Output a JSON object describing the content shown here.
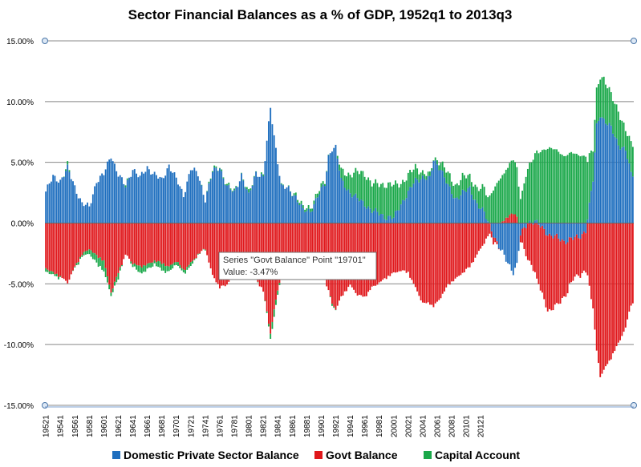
{
  "chart_data": {
    "type": "bar",
    "stacked": true,
    "title": "Sector Financial Balances as a % of GDP, 1952q1 to 2013q3",
    "xlabel": "",
    "ylabel": "",
    "ylim": [
      -15,
      15
    ],
    "yticks": [
      15,
      10,
      5,
      0,
      -5,
      -10,
      -15
    ],
    "ytick_labels": [
      "15.00%",
      "10.00%",
      "5.00%",
      "0.00%",
      "-5.00%",
      "-10.00%",
      "-15.00%"
    ],
    "x_tick_labels": [
      "19521",
      "19541",
      "19561",
      "19581",
      "19601",
      "19621",
      "19641",
      "19661",
      "19681",
      "19701",
      "19721",
      "19741",
      "19761",
      "19781",
      "19801",
      "19821",
      "19841",
      "19861",
      "19881",
      "19901",
      "19921",
      "19941",
      "19961",
      "19981",
      "20001",
      "20021",
      "20041",
      "20061",
      "20081",
      "20101",
      "20121"
    ],
    "grid": true,
    "legend_position": "bottom",
    "series": [
      {
        "name": "Domestic Private Sector Balance",
        "color": "#1f6fbf"
      },
      {
        "name": "Govt Balance",
        "color": "#e0171b"
      },
      {
        "name": "Capital Account",
        "color": "#1aa84a"
      }
    ],
    "anchors": {
      "private": [
        [
          0,
          2.6
        ],
        [
          4,
          3.8
        ],
        [
          8,
          3.5
        ],
        [
          12,
          4.5
        ],
        [
          16,
          3
        ],
        [
          20,
          1.6
        ],
        [
          24,
          1.3
        ],
        [
          28,
          3.5
        ],
        [
          32,
          4
        ],
        [
          36,
          5.6
        ],
        [
          40,
          4
        ],
        [
          44,
          3
        ],
        [
          48,
          4.5
        ],
        [
          52,
          3.7
        ],
        [
          56,
          4.6
        ],
        [
          60,
          4
        ],
        [
          64,
          3.5
        ],
        [
          68,
          4.8
        ],
        [
          72,
          3.6
        ],
        [
          76,
          2.3
        ],
        [
          80,
          4.5
        ],
        [
          84,
          4
        ],
        [
          88,
          2
        ],
        [
          92,
          4.2
        ],
        [
          96,
          4.6
        ],
        [
          100,
          3
        ],
        [
          104,
          2.5
        ],
        [
          108,
          4
        ],
        [
          112,
          2.2
        ],
        [
          116,
          4.2
        ],
        [
          120,
          3.8
        ],
        [
          124,
          9.5
        ],
        [
          126,
          7.2
        ],
        [
          130,
          3
        ],
        [
          134,
          2.8
        ],
        [
          138,
          2.2
        ],
        [
          142,
          1
        ],
        [
          146,
          1
        ],
        [
          150,
          2.2
        ],
        [
          154,
          3.2
        ],
        [
          156,
          5.5
        ],
        [
          158,
          6.2
        ],
        [
          160,
          6.2
        ],
        [
          163,
          3.5
        ],
        [
          168,
          2.5
        ],
        [
          172,
          2
        ],
        [
          176,
          1.6
        ],
        [
          180,
          1
        ],
        [
          184,
          0.8
        ],
        [
          188,
          0.5
        ],
        [
          192,
          0.4
        ],
        [
          196,
          1.6
        ],
        [
          200,
          2.5
        ],
        [
          204,
          3.5
        ],
        [
          208,
          3.8
        ],
        [
          212,
          3.6
        ],
        [
          214,
          5.2
        ],
        [
          218,
          4.5
        ],
        [
          222,
          3
        ],
        [
          226,
          2
        ],
        [
          230,
          2.5
        ],
        [
          234,
          2.8
        ],
        [
          238,
          1.6
        ],
        [
          242,
          0.8
        ],
        [
          244,
          0.1
        ],
        [
          246,
          -0.5
        ],
        [
          250,
          -2
        ],
        [
          254,
          -3
        ],
        [
          258,
          -4
        ],
        [
          260,
          -3.5
        ],
        [
          262,
          -1
        ],
        [
          266,
          0.1
        ],
        [
          270,
          0.1
        ],
        [
          274,
          -0.4
        ],
        [
          278,
          -1
        ],
        [
          282,
          -1.2
        ],
        [
          286,
          -1.5
        ],
        [
          290,
          -1.3
        ],
        [
          294,
          -1.2
        ],
        [
          298,
          -0.6
        ],
        [
          302,
          3.5
        ],
        [
          304,
          8
        ],
        [
          306,
          9
        ],
        [
          308,
          8.5
        ],
        [
          312,
          7.8
        ],
        [
          316,
          6.5
        ],
        [
          320,
          6
        ],
        [
          323,
          4
        ]
      ],
      "govt": [
        [
          0,
          -3.6
        ],
        [
          4,
          -4
        ],
        [
          8,
          -4.3
        ],
        [
          12,
          -4.8
        ],
        [
          16,
          -3.5
        ],
        [
          20,
          -2.5
        ],
        [
          24,
          -2
        ],
        [
          28,
          -2.6
        ],
        [
          32,
          -3
        ],
        [
          36,
          -5.6
        ],
        [
          40,
          -4
        ],
        [
          44,
          -2.5
        ],
        [
          48,
          -3.2
        ],
        [
          52,
          -3.5
        ],
        [
          56,
          -3.3
        ],
        [
          60,
          -3
        ],
        [
          64,
          -3.2
        ],
        [
          68,
          -3.5
        ],
        [
          72,
          -3
        ],
        [
          76,
          -3.8
        ],
        [
          80,
          -3.2
        ],
        [
          84,
          -2.5
        ],
        [
          88,
          -2
        ],
        [
          92,
          -4.2
        ],
        [
          96,
          -5.2
        ],
        [
          100,
          -5
        ],
        [
          104,
          -3.6
        ],
        [
          108,
          -4.5
        ],
        [
          112,
          -3.5
        ],
        [
          116,
          -4.5
        ],
        [
          120,
          -5.5
        ],
        [
          124,
          -9
        ],
        [
          126,
          -7
        ],
        [
          130,
          -4
        ],
        [
          134,
          -3.8
        ],
        [
          138,
          -3.2
        ],
        [
          142,
          -2.5
        ],
        [
          146,
          -2.5
        ],
        [
          150,
          -3
        ],
        [
          154,
          -4.6
        ],
        [
          156,
          -5.5
        ],
        [
          158,
          -6.5
        ],
        [
          160,
          -7
        ],
        [
          163,
          -6
        ],
        [
          168,
          -5
        ],
        [
          172,
          -5.8
        ],
        [
          176,
          -6
        ],
        [
          180,
          -5.2
        ],
        [
          184,
          -4.8
        ],
        [
          188,
          -4.4
        ],
        [
          192,
          -4
        ],
        [
          196,
          -3.8
        ],
        [
          200,
          -4
        ],
        [
          204,
          -5.2
        ],
        [
          208,
          -6.5
        ],
        [
          212,
          -6.5
        ],
        [
          214,
          -6.8
        ],
        [
          218,
          -6
        ],
        [
          222,
          -5
        ],
        [
          226,
          -4.5
        ],
        [
          230,
          -4
        ],
        [
          234,
          -3.5
        ],
        [
          238,
          -2.5
        ],
        [
          242,
          -1.5
        ],
        [
          244,
          -1
        ],
        [
          246,
          -0.5
        ],
        [
          250,
          0
        ],
        [
          254,
          0.5
        ],
        [
          258,
          0.9
        ],
        [
          260,
          0.7
        ],
        [
          262,
          -0.5
        ],
        [
          266,
          -2.8
        ],
        [
          270,
          -4
        ],
        [
          274,
          -5.5
        ],
        [
          278,
          -6.2
        ],
        [
          282,
          -5.5
        ],
        [
          286,
          -4.5
        ],
        [
          290,
          -3.5
        ],
        [
          294,
          -3
        ],
        [
          298,
          -3.2
        ],
        [
          302,
          -7
        ],
        [
          304,
          -10.4
        ],
        [
          306,
          -12.5
        ],
        [
          308,
          -12
        ],
        [
          312,
          -11
        ],
        [
          316,
          -9.8
        ],
        [
          320,
          -8.5
        ],
        [
          323,
          -6.6
        ]
      ],
      "capital": [
        [
          0,
          -0.3
        ],
        [
          4,
          -0.2
        ],
        [
          8,
          -0.1
        ],
        [
          12,
          0.2
        ],
        [
          16,
          -0.1
        ],
        [
          20,
          -0.2
        ],
        [
          24,
          -0.4
        ],
        [
          28,
          -0.6
        ],
        [
          32,
          -0.9
        ],
        [
          36,
          -0.2
        ],
        [
          40,
          -0.5
        ],
        [
          44,
          0.2
        ],
        [
          48,
          -0.2
        ],
        [
          52,
          -0.6
        ],
        [
          56,
          -0.4
        ],
        [
          60,
          -0.3
        ],
        [
          64,
          -0.6
        ],
        [
          68,
          -0.4
        ],
        [
          72,
          -0.3
        ],
        [
          76,
          -0.2
        ],
        [
          80,
          -0.3
        ],
        [
          84,
          0
        ],
        [
          88,
          0
        ],
        [
          92,
          0.1
        ],
        [
          96,
          0.1
        ],
        [
          100,
          0.1
        ],
        [
          104,
          0.1
        ],
        [
          108,
          0
        ],
        [
          112,
          0.2
        ],
        [
          116,
          0
        ],
        [
          120,
          0.1
        ],
        [
          124,
          -0.4
        ],
        [
          126,
          -0.6
        ],
        [
          130,
          0
        ],
        [
          134,
          0
        ],
        [
          138,
          0.2
        ],
        [
          142,
          0.2
        ],
        [
          146,
          0.3
        ],
        [
          150,
          0.3
        ],
        [
          154,
          0.2
        ],
        [
          156,
          0
        ],
        [
          158,
          -0.1
        ],
        [
          160,
          -0.1
        ],
        [
          163,
          0.8
        ],
        [
          168,
          1.5
        ],
        [
          172,
          2.2
        ],
        [
          176,
          2.5
        ],
        [
          180,
          2.2
        ],
        [
          184,
          2.4
        ],
        [
          188,
          2.7
        ],
        [
          192,
          2.7
        ],
        [
          196,
          1.7
        ],
        [
          200,
          1.4
        ],
        [
          204,
          1.1
        ],
        [
          208,
          0.4
        ],
        [
          212,
          0.3
        ],
        [
          214,
          0.1
        ],
        [
          218,
          0.6
        ],
        [
          222,
          1
        ],
        [
          226,
          1.1
        ],
        [
          230,
          1.3
        ],
        [
          234,
          1
        ],
        [
          238,
          1.3
        ],
        [
          242,
          2
        ],
        [
          244,
          2
        ],
        [
          246,
          2.5
        ],
        [
          250,
          3.5
        ],
        [
          254,
          4
        ],
        [
          258,
          4.5
        ],
        [
          260,
          4
        ],
        [
          262,
          2
        ],
        [
          266,
          4.5
        ],
        [
          270,
          5.5
        ],
        [
          274,
          6
        ],
        [
          278,
          6.2
        ],
        [
          282,
          6
        ],
        [
          286,
          5.5
        ],
        [
          290,
          5.8
        ],
        [
          294,
          5.6
        ],
        [
          298,
          5.5
        ],
        [
          302,
          2.5
        ],
        [
          304,
          2.9
        ],
        [
          306,
          3.2
        ],
        [
          308,
          3.4
        ],
        [
          312,
          2.7
        ],
        [
          316,
          2.8
        ],
        [
          320,
          1.6
        ],
        [
          323,
          2.5
        ]
      ]
    },
    "tooltip": {
      "line1": "Series \"Govt Balance\" Point \"19701\"",
      "line2": "Value: -3.47%"
    }
  }
}
